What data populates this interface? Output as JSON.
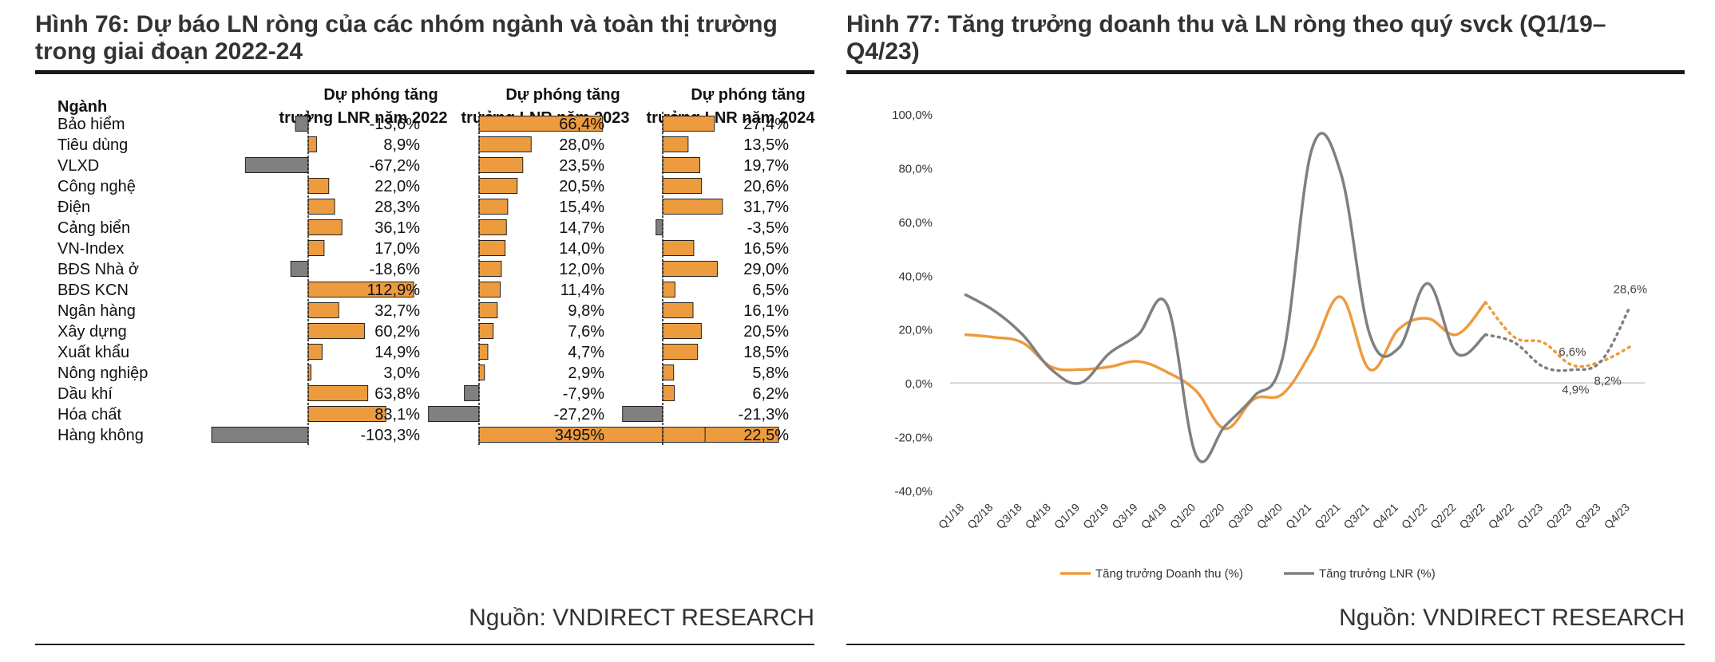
{
  "left": {
    "title_line1": "Hình 76: Dự báo LN ròng của các nhóm ngành và toàn thị trường",
    "title_line2": "trong giai đoạn 2022-24",
    "source": "Nguồn: VNDIRECT RESEARCH"
  },
  "right": {
    "title_line1": "Hình 77: Tăng trưởng doanh thu và LN ròng theo quý svck (Q1/19–",
    "title_line2": "Q4/23)",
    "source": "Nguồn: VNDIRECT RESEARCH"
  },
  "colors": {
    "orange": "#ED9B3F",
    "gray": "#808080",
    "accent_text": "#333333"
  },
  "chart_data": [
    {
      "type": "bar",
      "orientation": "horizontal",
      "title": "Hình 76: Dự báo LN ròng của các nhóm ngành và toàn thị trường trong giai đoạn 2022-24",
      "row_header": "Ngành",
      "categories": [
        "Bảo hiểm",
        "Tiêu dùng",
        "VLXD",
        "Công nghệ",
        "Điện",
        "Cảng biển",
        "VN-Index",
        "BĐS Nhà ở",
        "BĐS KCN",
        "Ngân hàng",
        "Xây dựng",
        "Xuất khẩu",
        "Nông nghiệp",
        "Dầu khí",
        "Hóa chất",
        "Hàng không"
      ],
      "series": [
        {
          "name": "Dự phóng tăng trưởng LNR năm 2022",
          "header_line1": "Dự phóng tăng",
          "header_line2": "trưởng LNR năm 2022",
          "values": [
            -13.6,
            8.9,
            -67.2,
            22.0,
            28.3,
            36.1,
            17.0,
            -18.6,
            112.9,
            32.7,
            60.2,
            14.9,
            3.0,
            63.8,
            83.1,
            -103.3
          ],
          "labels": [
            "-13,6%",
            "8,9%",
            "-67,2%",
            "22,0%",
            "28,3%",
            "36,1%",
            "17,0%",
            "-18,6%",
            "112,9%",
            "32,7%",
            "60,2%",
            "14,9%",
            "3,0%",
            "63,8%",
            "83,1%",
            "-103,3%"
          ]
        },
        {
          "name": "Dự phóng tăng trưởng LNR năm 2023",
          "header_line1": "Dự phóng tăng",
          "header_line2": "trưởng LNR năm 2023",
          "values": [
            66.4,
            28.0,
            23.5,
            20.5,
            15.4,
            14.7,
            14.0,
            12.0,
            11.4,
            9.8,
            7.6,
            4.7,
            2.9,
            -7.9,
            -27.2,
            3495
          ],
          "labels": [
            "66,4%",
            "28,0%",
            "23,5%",
            "20,5%",
            "15,4%",
            "14,7%",
            "14,0%",
            "12,0%",
            "11,4%",
            "9,8%",
            "7,6%",
            "4,7%",
            "2,9%",
            "-7,9%",
            "-27,2%",
            "3495%"
          ]
        },
        {
          "name": "Dự phóng tăng trưởng LNR năm 2024",
          "header_line1": "Dự phóng tăng",
          "header_line2": "trưởng LNR năm 2024",
          "values": [
            27.4,
            13.5,
            19.7,
            20.6,
            31.7,
            -3.5,
            16.5,
            29.0,
            6.5,
            16.1,
            20.5,
            18.5,
            5.8,
            6.2,
            -21.3,
            22.5
          ],
          "labels": [
            "27,4%",
            "13,5%",
            "19,7%",
            "20,6%",
            "31,7%",
            "-3,5%",
            "16,5%",
            "29,0%",
            "6,5%",
            "16,1%",
            "20,5%",
            "18,5%",
            "5,8%",
            "6,2%",
            "-21,3%",
            "22,5%"
          ]
        }
      ]
    },
    {
      "type": "line",
      "title": "Hình 77: Tăng trưởng doanh thu và LN ròng theo quý svck (Q1/19–Q4/23)",
      "x": [
        "Q1/18",
        "Q2/18",
        "Q3/18",
        "Q4/18",
        "Q1/19",
        "Q2/19",
        "Q3/19",
        "Q4/19",
        "Q1/20",
        "Q2/20",
        "Q3/20",
        "Q4/20",
        "Q1/21",
        "Q2/21",
        "Q3/21",
        "Q4/21",
        "Q1/22",
        "Q2/22",
        "Q3/22",
        "Q4/22",
        "Q1/23",
        "Q2/23",
        "Q3/23",
        "Q4/23"
      ],
      "ylim": [
        -40,
        100
      ],
      "yticks": [
        -40,
        -20,
        0,
        20,
        40,
        60,
        80,
        100
      ],
      "ytick_labels": [
        "-40,0%",
        "-20,0%",
        "0,0%",
        "20,0%",
        "40,0%",
        "60,0%",
        "80,0%",
        "100,0%"
      ],
      "forecast_from_index": 18,
      "series": [
        {
          "name": "Tăng trưởng Doanh thu (%)",
          "color": "#ED9B3F",
          "values": [
            18,
            17,
            15,
            6,
            5,
            6,
            8,
            4,
            -3,
            -17,
            -6,
            -4,
            12,
            32,
            5,
            20,
            24,
            18,
            30,
            17,
            15,
            6.6,
            8,
            13.5
          ]
        },
        {
          "name": "Tăng trưởng LNR (%)",
          "color": "#808080",
          "values": [
            33,
            27,
            18,
            5,
            0,
            11,
            18,
            29,
            -27,
            -16,
            -5,
            10,
            87,
            78,
            18,
            13,
            37,
            11,
            18,
            15,
            6,
            4.9,
            8.2,
            28.6
          ]
        }
      ],
      "annotations": [
        {
          "series": 0,
          "index": 21,
          "text": "6,6%"
        },
        {
          "series": 1,
          "index": 21,
          "text": "4,9%"
        },
        {
          "series": 1,
          "index": 22,
          "text": "8,2%"
        },
        {
          "series": 1,
          "index": 23,
          "text": "28,6%"
        }
      ]
    }
  ]
}
